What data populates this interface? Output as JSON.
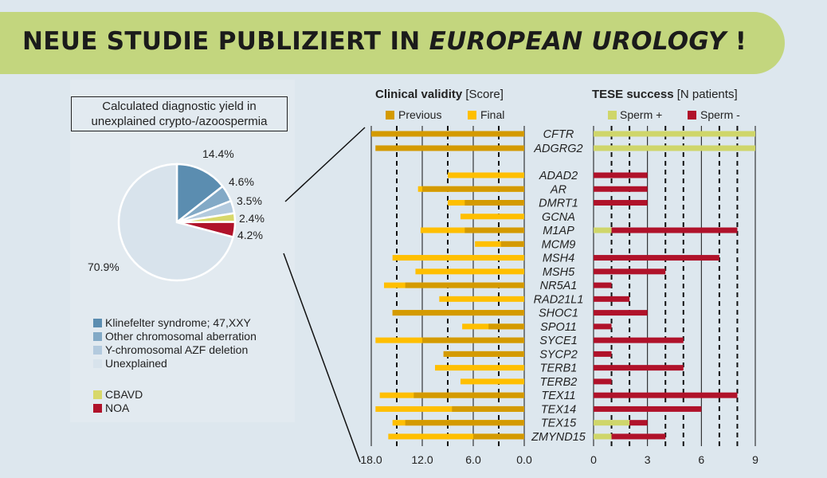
{
  "banner": {
    "title_prefix": "NEUE STUDIE PUBLIZIERT IN ",
    "title_journal": "EUROPEAN UROLOGY",
    "title_suffix": " !"
  },
  "colors": {
    "banner": "#c3d67e",
    "previous": "#d49a00",
    "final": "#ffbf00",
    "sperm_pos": "#cfd66a",
    "sperm_neg": "#b0122a"
  },
  "chart_data": [
    {
      "type": "pie",
      "title": "Calculated diagnostic yield in unexplained crypto-/azoospermia",
      "slices": [
        {
          "label": "Klinefelter syndrome; 47,XXY",
          "value": 14.4,
          "text": "14.4%",
          "color": "#5b8db0"
        },
        {
          "label": "Other chromosomal aberration",
          "value": 4.6,
          "text": "4.6%",
          "color": "#82a9c6"
        },
        {
          "label": "Y-chromosomal AZF deletion",
          "value": 3.5,
          "text": "3.5%",
          "color": "#b3cade"
        },
        {
          "label": "CBAVD",
          "value": 2.4,
          "text": "2.4%",
          "color": "#d8d86a"
        },
        {
          "label": "NOA",
          "value": 4.2,
          "text": "4.2%",
          "color": "#b0122a"
        },
        {
          "label": "Unexplained",
          "value": 70.9,
          "text": "70.9%",
          "color": "#d8e3ec"
        }
      ],
      "legend": [
        {
          "label": "Klinefelter syndrome; 47,XXY",
          "color": "#5b8db0"
        },
        {
          "label": "Other chromosomal aberration",
          "color": "#82a9c6"
        },
        {
          "label": "Y-chromosomal AZF deletion",
          "color": "#b3cade"
        },
        {
          "label": "Unexplained",
          "color": "#d8e3ec"
        },
        {
          "label": "CBAVD",
          "color": "#d8d86a"
        },
        {
          "label": "NOA",
          "color": "#b0122a"
        }
      ]
    },
    {
      "type": "bar",
      "title": "Clinical validity",
      "title_unit": "[Score]",
      "legend": [
        "Previous",
        "Final"
      ],
      "xlim": [
        18,
        0
      ],
      "ticks": [
        "18.0",
        "12.0",
        "6.0",
        "0.0"
      ],
      "categories": [
        "CFTR",
        "ADGRG2",
        "ADAD2",
        "AR",
        "DMRT1",
        "GCNA",
        "M1AP",
        "MCM9",
        "MSH4",
        "MSH5",
        "NR5A1",
        "RAD21L1",
        "SHOC1",
        "SPO11",
        "SYCE1",
        "SYCP2",
        "TERB1",
        "TERB2",
        "TEX11",
        "TEX14",
        "TEX15",
        "ZMYND15"
      ],
      "series": [
        {
          "name": "Previous",
          "values": [
            18.0,
            17.5,
            0,
            12.0,
            7.0,
            0,
            7.0,
            2.75,
            0,
            0,
            14.0,
            0,
            15.5,
            4.2,
            12.0,
            9.5,
            0,
            0,
            13.0,
            8.5,
            14.0,
            6.0
          ]
        },
        {
          "name": "Final",
          "values": [
            18.0,
            17.5,
            9.0,
            12.5,
            9.0,
            7.5,
            12.2,
            5.8,
            15.5,
            12.8,
            16.5,
            10.0,
            15.5,
            7.3,
            17.5,
            9.5,
            10.5,
            7.5,
            17.0,
            17.5,
            15.5,
            16.0
          ]
        }
      ]
    },
    {
      "type": "bar",
      "title": "TESE success",
      "title_unit": "[N patients]",
      "legend": [
        "Sperm +",
        "Sperm -"
      ],
      "xlim": [
        0,
        9
      ],
      "ticks": [
        "0",
        "3",
        "6",
        "9"
      ],
      "series": [
        {
          "name": "Sperm +",
          "values": [
            9,
            9,
            0,
            0,
            0,
            0,
            1,
            0,
            0,
            0,
            0,
            0,
            0,
            0,
            0,
            0,
            0,
            0,
            0,
            0,
            2,
            1
          ]
        },
        {
          "name": "Sperm -",
          "values": [
            0,
            0,
            3,
            3,
            3,
            0,
            7,
            0,
            7,
            4,
            1,
            2,
            3,
            1,
            5,
            1,
            5,
            1,
            8,
            6,
            1,
            3
          ]
        }
      ]
    }
  ]
}
